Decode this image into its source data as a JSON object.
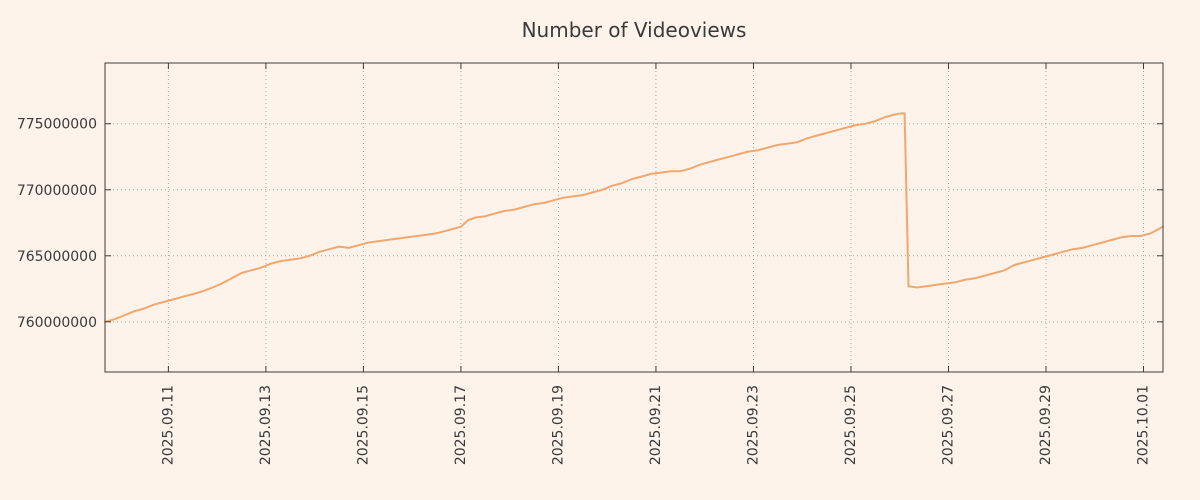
{
  "title": "Number of Videoviews",
  "colors": {
    "background": "#fdf3eb",
    "line": "#f2a76e",
    "grid": "#aaa49c",
    "axis": "#3f3c38",
    "text": "#3a3a3a"
  },
  "chart_data": {
    "type": "line",
    "title": "Number of Videoviews",
    "xlabel": "",
    "ylabel": "",
    "legend": "none",
    "grid": true,
    "x_unit": "days since 2025-09-09 00:00",
    "xlim_days": [
      0.7,
      22.4
    ],
    "ylim": [
      756200000,
      779600000
    ],
    "y_ticks": [
      760000000,
      765000000,
      770000000,
      775000000
    ],
    "x_ticks": [
      {
        "day": 2,
        "label": "2025.09.11"
      },
      {
        "day": 4,
        "label": "2025.09.13"
      },
      {
        "day": 6,
        "label": "2025.09.15"
      },
      {
        "day": 8,
        "label": "2025.09.17"
      },
      {
        "day": 10,
        "label": "2025.09.19"
      },
      {
        "day": 12,
        "label": "2025.09.21"
      },
      {
        "day": 14,
        "label": "2025.09.23"
      },
      {
        "day": 16,
        "label": "2025.09.25"
      },
      {
        "day": 18,
        "label": "2025.09.27"
      },
      {
        "day": 20,
        "label": "2025.09.29"
      },
      {
        "day": 22,
        "label": "2025.10.01"
      }
    ],
    "series": [
      {
        "name": "videoviews",
        "points": [
          [
            0.7,
            760000000
          ],
          [
            0.9,
            760200000
          ],
          [
            1.1,
            760500000
          ],
          [
            1.3,
            760800000
          ],
          [
            1.5,
            761000000
          ],
          [
            1.7,
            761300000
          ],
          [
            1.9,
            761500000
          ],
          [
            2.1,
            761700000
          ],
          [
            2.3,
            761900000
          ],
          [
            2.5,
            762100000
          ],
          [
            2.7,
            762300000
          ],
          [
            2.9,
            762600000
          ],
          [
            3.1,
            762900000
          ],
          [
            3.3,
            763300000
          ],
          [
            3.5,
            763700000
          ],
          [
            3.7,
            763900000
          ],
          [
            3.9,
            764100000
          ],
          [
            4.1,
            764400000
          ],
          [
            4.3,
            764600000
          ],
          [
            4.5,
            764700000
          ],
          [
            4.7,
            764800000
          ],
          [
            4.9,
            765000000
          ],
          [
            5.1,
            765300000
          ],
          [
            5.3,
            765500000
          ],
          [
            5.5,
            765700000
          ],
          [
            5.7,
            765600000
          ],
          [
            5.9,
            765800000
          ],
          [
            6.1,
            766000000
          ],
          [
            6.3,
            766100000
          ],
          [
            6.5,
            766200000
          ],
          [
            6.7,
            766300000
          ],
          [
            6.9,
            766400000
          ],
          [
            7.1,
            766500000
          ],
          [
            7.3,
            766600000
          ],
          [
            7.5,
            766700000
          ],
          [
            7.7,
            766900000
          ],
          [
            7.9,
            767100000
          ],
          [
            8.0,
            767200000
          ],
          [
            8.15,
            767700000
          ],
          [
            8.3,
            767900000
          ],
          [
            8.5,
            768000000
          ],
          [
            8.7,
            768200000
          ],
          [
            8.9,
            768400000
          ],
          [
            9.1,
            768500000
          ],
          [
            9.3,
            768700000
          ],
          [
            9.5,
            768900000
          ],
          [
            9.7,
            769000000
          ],
          [
            9.9,
            769200000
          ],
          [
            10.1,
            769400000
          ],
          [
            10.3,
            769500000
          ],
          [
            10.5,
            769600000
          ],
          [
            10.7,
            769800000
          ],
          [
            10.9,
            770000000
          ],
          [
            11.1,
            770300000
          ],
          [
            11.3,
            770500000
          ],
          [
            11.5,
            770800000
          ],
          [
            11.7,
            771000000
          ],
          [
            11.9,
            771200000
          ],
          [
            12.1,
            771300000
          ],
          [
            12.3,
            771400000
          ],
          [
            12.5,
            771400000
          ],
          [
            12.7,
            771600000
          ],
          [
            12.9,
            771900000
          ],
          [
            13.1,
            772100000
          ],
          [
            13.3,
            772300000
          ],
          [
            13.5,
            772500000
          ],
          [
            13.7,
            772700000
          ],
          [
            13.9,
            772900000
          ],
          [
            14.1,
            773000000
          ],
          [
            14.3,
            773200000
          ],
          [
            14.5,
            773400000
          ],
          [
            14.7,
            773500000
          ],
          [
            14.9,
            773600000
          ],
          [
            15.1,
            773900000
          ],
          [
            15.3,
            774100000
          ],
          [
            15.5,
            774300000
          ],
          [
            15.7,
            774500000
          ],
          [
            15.9,
            774700000
          ],
          [
            16.1,
            774900000
          ],
          [
            16.3,
            775000000
          ],
          [
            16.5,
            775200000
          ],
          [
            16.7,
            775500000
          ],
          [
            16.9,
            775700000
          ],
          [
            17.05,
            775800000
          ],
          [
            17.1,
            775800000
          ],
          [
            17.18,
            762700000
          ],
          [
            17.35,
            762600000
          ],
          [
            17.55,
            762700000
          ],
          [
            17.75,
            762800000
          ],
          [
            17.95,
            762900000
          ],
          [
            18.15,
            763000000
          ],
          [
            18.35,
            763200000
          ],
          [
            18.55,
            763300000
          ],
          [
            18.75,
            763500000
          ],
          [
            18.95,
            763700000
          ],
          [
            19.15,
            763900000
          ],
          [
            19.35,
            764300000
          ],
          [
            19.55,
            764500000
          ],
          [
            19.75,
            764700000
          ],
          [
            19.95,
            764900000
          ],
          [
            20.15,
            765100000
          ],
          [
            20.35,
            765300000
          ],
          [
            20.55,
            765500000
          ],
          [
            20.75,
            765600000
          ],
          [
            20.95,
            765800000
          ],
          [
            21.15,
            766000000
          ],
          [
            21.35,
            766200000
          ],
          [
            21.55,
            766400000
          ],
          [
            21.75,
            766500000
          ],
          [
            21.95,
            766500000
          ],
          [
            22.15,
            766700000
          ],
          [
            22.3,
            767000000
          ],
          [
            22.4,
            767200000
          ]
        ]
      }
    ]
  }
}
